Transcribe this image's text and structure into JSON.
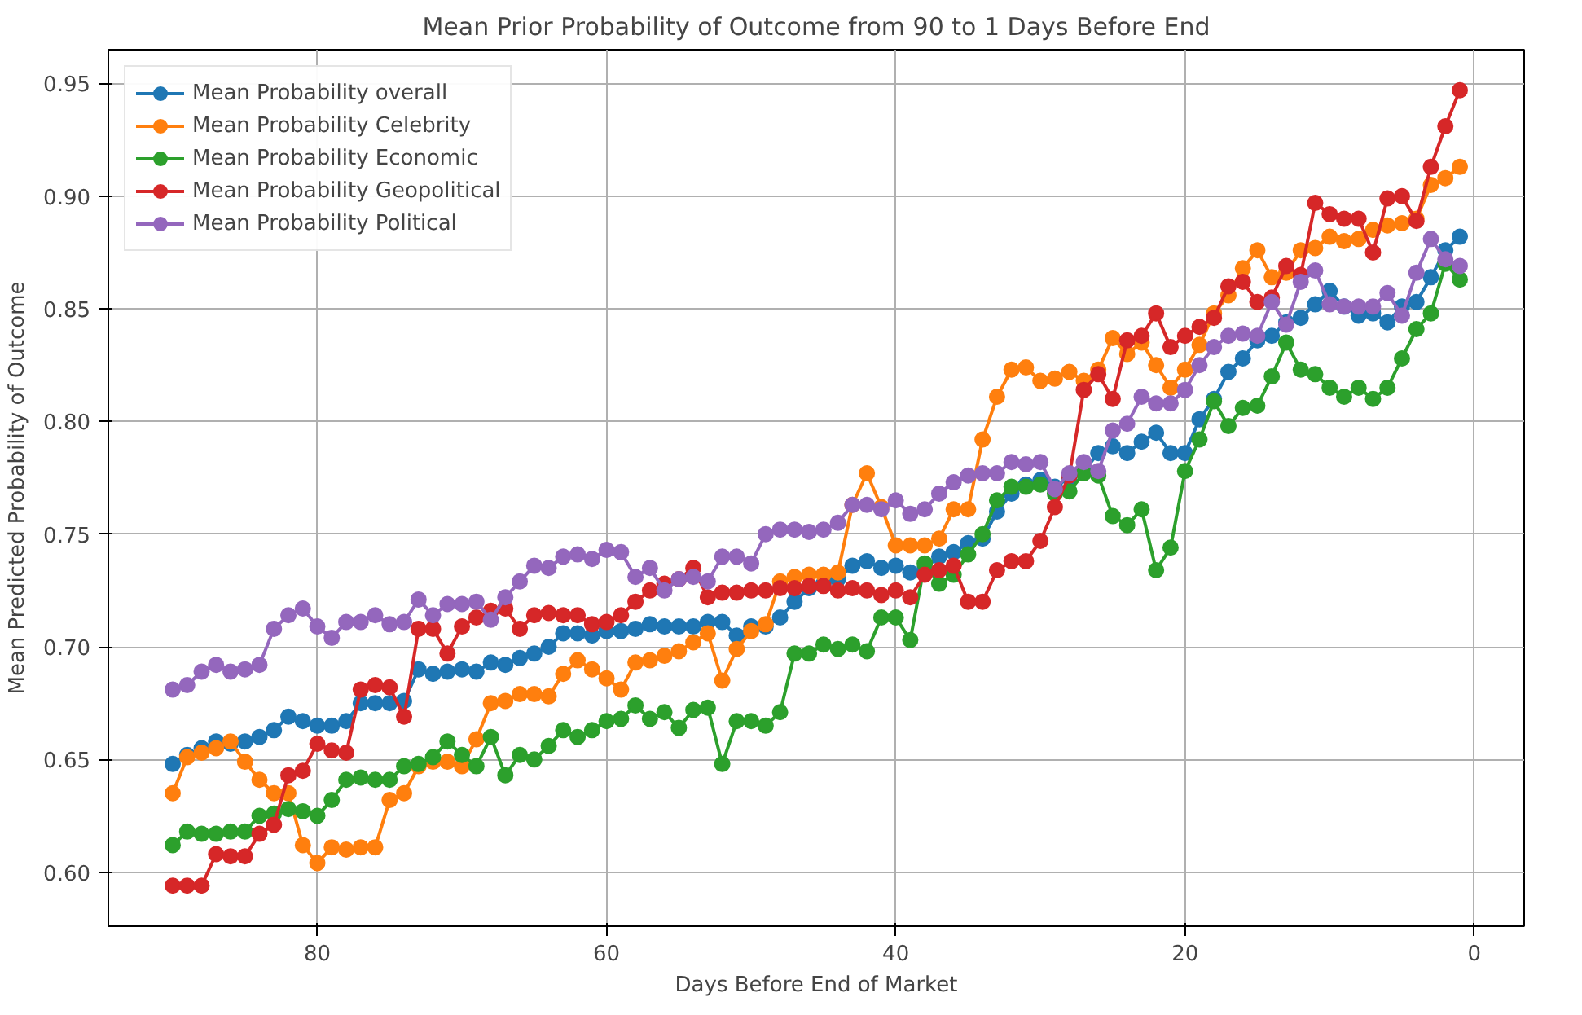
{
  "chart_data": {
    "type": "line",
    "title": "Mean Prior Probability of Outcome from 90 to 1 Days Before End",
    "xlabel": "Days Before End of Market",
    "ylabel": "Mean Predicted Probability of Outcome",
    "x": [
      90,
      89,
      88,
      87,
      86,
      85,
      84,
      83,
      82,
      81,
      80,
      79,
      78,
      77,
      76,
      75,
      74,
      73,
      72,
      71,
      70,
      69,
      68,
      67,
      66,
      65,
      64,
      63,
      62,
      61,
      60,
      59,
      58,
      57,
      56,
      55,
      54,
      53,
      52,
      51,
      50,
      49,
      48,
      47,
      46,
      45,
      44,
      43,
      42,
      41,
      40,
      39,
      38,
      37,
      36,
      35,
      34,
      33,
      32,
      31,
      30,
      29,
      28,
      27,
      26,
      25,
      24,
      23,
      22,
      21,
      20,
      19,
      18,
      17,
      16,
      15,
      14,
      13,
      12,
      11,
      10,
      9,
      8,
      7,
      6,
      5,
      4,
      3,
      2,
      1
    ],
    "series": [
      {
        "name": "Mean Probability overall",
        "color": "#1f77b4",
        "values": [
          0.648,
          0.652,
          0.655,
          0.658,
          0.657,
          0.658,
          0.66,
          0.663,
          0.669,
          0.667,
          0.665,
          0.665,
          0.667,
          0.675,
          0.675,
          0.675,
          0.676,
          0.69,
          0.688,
          0.689,
          0.69,
          0.689,
          0.693,
          0.692,
          0.695,
          0.697,
          0.7,
          0.706,
          0.706,
          0.705,
          0.707,
          0.707,
          0.708,
          0.71,
          0.709,
          0.709,
          0.709,
          0.711,
          0.711,
          0.705,
          0.709,
          0.709,
          0.713,
          0.72,
          0.726,
          0.728,
          0.73,
          0.736,
          0.738,
          0.735,
          0.736,
          0.733,
          0.735,
          0.74,
          0.742,
          0.746,
          0.748,
          0.76,
          0.768,
          0.772,
          0.774,
          0.771,
          0.775,
          0.778,
          0.786,
          0.789,
          0.786,
          0.791,
          0.795,
          0.786,
          0.786,
          0.801,
          0.81,
          0.822,
          0.828,
          0.836,
          0.838,
          0.844,
          0.846,
          0.852,
          0.858,
          0.851,
          0.847,
          0.848,
          0.844,
          0.851,
          0.853,
          0.864,
          0.876,
          0.882
        ]
      },
      {
        "name": "Mean Probability Celebrity",
        "color": "#ff7f0e",
        "values": [
          0.635,
          0.651,
          0.653,
          0.655,
          0.658,
          0.649,
          0.641,
          0.635,
          0.635,
          0.612,
          0.604,
          0.611,
          0.61,
          0.611,
          0.611,
          0.632,
          0.635,
          0.647,
          0.649,
          0.649,
          0.647,
          0.659,
          0.675,
          0.676,
          0.679,
          0.679,
          0.678,
          0.688,
          0.694,
          0.69,
          0.686,
          0.681,
          0.693,
          0.694,
          0.696,
          0.698,
          0.702,
          0.706,
          0.685,
          0.699,
          0.707,
          0.71,
          0.729,
          0.731,
          0.732,
          0.732,
          0.733,
          0.763,
          0.777,
          0.762,
          0.745,
          0.745,
          0.745,
          0.748,
          0.761,
          0.761,
          0.792,
          0.811,
          0.823,
          0.824,
          0.818,
          0.819,
          0.822,
          0.818,
          0.823,
          0.837,
          0.83,
          0.835,
          0.825,
          0.815,
          0.823,
          0.834,
          0.848,
          0.856,
          0.868,
          0.876,
          0.864,
          0.866,
          0.876,
          0.877,
          0.882,
          0.88,
          0.881,
          0.885,
          0.887,
          0.888,
          0.89,
          0.905,
          0.908,
          0.913
        ]
      },
      {
        "name": "Mean Probability Economic",
        "color": "#2ca02c",
        "values": [
          0.612,
          0.618,
          0.617,
          0.617,
          0.618,
          0.618,
          0.625,
          0.626,
          0.628,
          0.627,
          0.625,
          0.632,
          0.641,
          0.642,
          0.641,
          0.641,
          0.647,
          0.648,
          0.651,
          0.658,
          0.652,
          0.647,
          0.66,
          0.643,
          0.652,
          0.65,
          0.656,
          0.663,
          0.66,
          0.663,
          0.667,
          0.668,
          0.674,
          0.668,
          0.671,
          0.664,
          0.672,
          0.673,
          0.648,
          0.667,
          0.667,
          0.665,
          0.671,
          0.697,
          0.697,
          0.701,
          0.699,
          0.701,
          0.698,
          0.713,
          0.713,
          0.703,
          0.737,
          0.728,
          0.732,
          0.741,
          0.75,
          0.765,
          0.771,
          0.771,
          0.772,
          0.768,
          0.769,
          0.777,
          0.776,
          0.758,
          0.754,
          0.761,
          0.734,
          0.744,
          0.778,
          0.792,
          0.809,
          0.798,
          0.806,
          0.807,
          0.82,
          0.835,
          0.823,
          0.821,
          0.815,
          0.811,
          0.815,
          0.81,
          0.815,
          0.828,
          0.841,
          0.848,
          0.87,
          0.863
        ]
      },
      {
        "name": "Mean Probability Geopolitical",
        "color": "#d62728",
        "values": [
          0.594,
          0.594,
          0.594,
          0.608,
          0.607,
          0.607,
          0.617,
          0.621,
          0.643,
          0.645,
          0.657,
          0.654,
          0.653,
          0.681,
          0.683,
          0.682,
          0.669,
          0.708,
          0.708,
          0.697,
          0.709,
          0.713,
          0.716,
          0.717,
          0.708,
          0.714,
          0.715,
          0.714,
          0.714,
          0.71,
          0.711,
          0.714,
          0.72,
          0.725,
          0.728,
          0.73,
          0.735,
          0.722,
          0.724,
          0.724,
          0.725,
          0.725,
          0.726,
          0.726,
          0.727,
          0.727,
          0.725,
          0.726,
          0.725,
          0.723,
          0.725,
          0.722,
          0.732,
          0.734,
          0.736,
          0.72,
          0.72,
          0.734,
          0.738,
          0.738,
          0.747,
          0.762,
          0.776,
          0.814,
          0.821,
          0.81,
          0.836,
          0.838,
          0.848,
          0.833,
          0.838,
          0.842,
          0.846,
          0.86,
          0.862,
          0.853,
          0.855,
          0.869,
          0.865,
          0.897,
          0.892,
          0.89,
          0.89,
          0.875,
          0.899,
          0.9,
          0.889,
          0.913,
          0.931,
          0.947
        ]
      },
      {
        "name": "Mean Probability Political",
        "color": "#9467bd",
        "values": [
          0.681,
          0.683,
          0.689,
          0.692,
          0.689,
          0.69,
          0.692,
          0.708,
          0.714,
          0.717,
          0.709,
          0.704,
          0.711,
          0.711,
          0.714,
          0.71,
          0.711,
          0.721,
          0.714,
          0.719,
          0.719,
          0.72,
          0.712,
          0.722,
          0.729,
          0.736,
          0.735,
          0.74,
          0.741,
          0.739,
          0.743,
          0.742,
          0.731,
          0.735,
          0.725,
          0.73,
          0.731,
          0.729,
          0.74,
          0.74,
          0.737,
          0.75,
          0.752,
          0.752,
          0.751,
          0.752,
          0.755,
          0.763,
          0.763,
          0.761,
          0.765,
          0.759,
          0.761,
          0.768,
          0.773,
          0.776,
          0.777,
          0.777,
          0.782,
          0.781,
          0.782,
          0.77,
          0.777,
          0.782,
          0.778,
          0.796,
          0.799,
          0.811,
          0.808,
          0.808,
          0.814,
          0.825,
          0.833,
          0.838,
          0.839,
          0.838,
          0.853,
          0.843,
          0.862,
          0.867,
          0.852,
          0.851,
          0.851,
          0.851,
          0.857,
          0.847,
          0.866,
          0.881,
          0.872,
          0.869
        ]
      }
    ],
    "xlim": [
      94.45,
      -3.45
    ],
    "xticks": [
      80,
      60,
      40,
      20,
      0
    ],
    "ylim": [
      0.576,
      0.965
    ],
    "yticks": [
      {
        "value": 0.6,
        "label": "0.60"
      },
      {
        "value": 0.65,
        "label": "0.65"
      },
      {
        "value": 0.7,
        "label": "0.70"
      },
      {
        "value": 0.75,
        "label": "0.75"
      },
      {
        "value": 0.8,
        "label": "0.80"
      },
      {
        "value": 0.85,
        "label": "0.85"
      },
      {
        "value": 0.9,
        "label": "0.90"
      },
      {
        "value": 0.95,
        "label": "0.95"
      }
    ],
    "grid": true,
    "legend": "top left",
    "marker": "circle"
  }
}
